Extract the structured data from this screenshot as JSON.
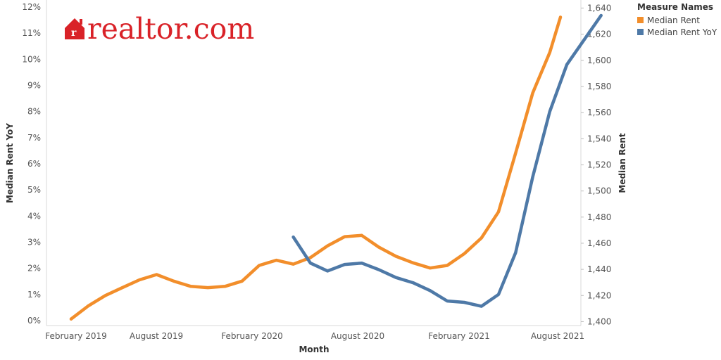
{
  "logo": {
    "text": "realtor.com"
  },
  "legend": {
    "title": "Measure Names",
    "items": [
      {
        "label": "Median Rent",
        "color": "#f28e2b"
      },
      {
        "label": "Median Rent YoY",
        "color": "#4e79a7"
      }
    ]
  },
  "chart_data": {
    "type": "line",
    "xlabel": "Month",
    "ylabel_left": "Median Rent YoY",
    "ylabel_right": "Median Rent",
    "x_ticks": [
      "February 2019",
      "August 2019",
      "February 2020",
      "August 2020",
      "February 2021",
      "August 2021"
    ],
    "y_left_ticks": [
      "0%",
      "1%",
      "2%",
      "3%",
      "4%",
      "5%",
      "6%",
      "7%",
      "8%",
      "9%",
      "10%",
      "11%",
      "12%"
    ],
    "y_right_ticks": [
      "1,400",
      "1,420",
      "1,440",
      "1,460",
      "1,480",
      "1,500",
      "1,520",
      "1,540",
      "1,560",
      "1,580",
      "1,600",
      "1,620",
      "1,640"
    ],
    "y_left_range": [
      0,
      12
    ],
    "y_right_range": [
      1397,
      1644
    ],
    "grid": false,
    "legend_position": "top-right",
    "x": [
      "2019-01",
      "2019-02",
      "2019-03",
      "2019-04",
      "2019-05",
      "2019-06",
      "2019-07",
      "2019-08",
      "2019-09",
      "2019-10",
      "2019-11",
      "2019-12",
      "2020-01",
      "2020-02",
      "2020-03",
      "2020-04",
      "2020-05",
      "2020-06",
      "2020-07",
      "2020-08",
      "2020-09",
      "2020-10",
      "2020-11",
      "2020-12",
      "2021-01",
      "2021-02",
      "2021-03",
      "2021-04",
      "2021-05",
      "2021-06",
      "2021-07",
      "2021-08"
    ],
    "series": [
      {
        "name": "Median Rent",
        "axis": "right",
        "color": "#f28e2b",
        "values": [
          1402,
          1412,
          1420,
          1426,
          1432,
          1436,
          1431,
          1427,
          1426,
          1427,
          1431,
          1443,
          1447,
          1444,
          1449,
          1458,
          1465,
          1466,
          1457,
          1450,
          1445,
          1441,
          1443,
          1452,
          1464,
          1484,
          1529,
          1575,
          1606,
          1633,
          null,
          null
        ]
      },
      {
        "name": "Median Rent YoY",
        "axis": "left",
        "color": "#4e79a7",
        "values": [
          null,
          null,
          null,
          null,
          null,
          null,
          null,
          null,
          null,
          null,
          null,
          null,
          null,
          3.2,
          2.2,
          1.9,
          2.15,
          2.2,
          1.95,
          1.65,
          1.45,
          1.15,
          0.75,
          0.7,
          0.55,
          1.0,
          2.6,
          5.5,
          8.0,
          9.8,
          11.6,
          null
        ]
      }
    ]
  }
}
